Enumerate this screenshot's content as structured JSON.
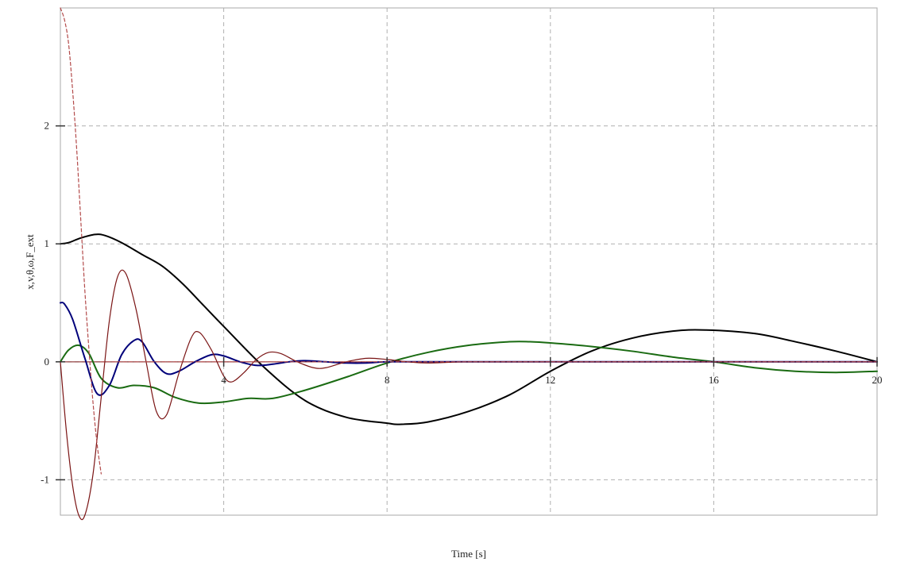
{
  "chart_data": {
    "type": "line",
    "title": "",
    "xlabel": "Time [s]",
    "ylabel": "x,v,θ,ω,F_ext",
    "xlim": [
      0,
      20
    ],
    "ylim": [
      -1.3,
      3.0
    ],
    "xticks": [
      4,
      8,
      12,
      16,
      20
    ],
    "xtick_labels": [
      "4",
      "8",
      "12",
      "16",
      "20"
    ],
    "yticks": [
      -1,
      0,
      1,
      2
    ],
    "ytick_labels": [
      "-1",
      "0",
      "1",
      "2"
    ],
    "grid": true,
    "legend": "none",
    "series": [
      {
        "key": "x",
        "color": "#000000",
        "width": 2,
        "dashed": false,
        "x": [
          0,
          0.2,
          0.5,
          0.85,
          1.1,
          1.5,
          2.0,
          2.5,
          3.0,
          3.5,
          4.0,
          5.0,
          6.0,
          7.0,
          8.0,
          8.3,
          9.0,
          10.0,
          11.0,
          12.0,
          13.0,
          14.0,
          15.0,
          15.8,
          17.0,
          18.0,
          19.0,
          20.0
        ],
        "y": [
          1.0,
          1.01,
          1.05,
          1.08,
          1.07,
          1.01,
          0.91,
          0.81,
          0.66,
          0.48,
          0.3,
          -0.05,
          -0.33,
          -0.47,
          -0.52,
          -0.53,
          -0.51,
          -0.42,
          -0.28,
          -0.08,
          0.09,
          0.2,
          0.26,
          0.27,
          0.24,
          0.17,
          0.09,
          0.0
        ]
      },
      {
        "key": "v",
        "color": "#1a6b12",
        "width": 2,
        "dashed": false,
        "x": [
          0,
          0.2,
          0.45,
          0.7,
          1.0,
          1.4,
          1.8,
          2.3,
          2.8,
          3.4,
          4.0,
          4.6,
          5.2,
          6.0,
          7.0,
          8.0,
          9.0,
          10.0,
          11.0,
          11.5,
          12.0,
          13.0,
          14.0,
          15.0,
          16.0,
          17.0,
          18.0,
          19.0,
          20.0
        ],
        "y": [
          0.0,
          0.1,
          0.14,
          0.07,
          -0.14,
          -0.22,
          -0.2,
          -0.22,
          -0.3,
          -0.35,
          -0.34,
          -0.31,
          -0.31,
          -0.24,
          -0.13,
          -0.01,
          0.08,
          0.14,
          0.17,
          0.17,
          0.16,
          0.13,
          0.09,
          0.04,
          0.0,
          -0.05,
          -0.08,
          -0.09,
          -0.08
        ]
      },
      {
        "key": "θ",
        "color": "#00007a",
        "width": 2,
        "dashed": false,
        "x": [
          0,
          0.1,
          0.3,
          0.6,
          0.9,
          1.2,
          1.5,
          1.8,
          2.0,
          2.3,
          2.6,
          2.9,
          3.3,
          3.7,
          4.0,
          4.4,
          4.8,
          5.2,
          5.6,
          6.0,
          6.5,
          7.0,
          7.5,
          8.0,
          9.0,
          10.0,
          12.0,
          16.0,
          20.0
        ],
        "y": [
          0.5,
          0.49,
          0.36,
          0.03,
          -0.27,
          -0.2,
          0.06,
          0.18,
          0.17,
          0.0,
          -0.1,
          -0.08,
          0.0,
          0.06,
          0.05,
          0.0,
          -0.03,
          -0.02,
          0.0,
          0.01,
          0.0,
          -0.01,
          -0.01,
          0.0,
          0.0,
          0.0,
          0.0,
          0.0,
          0.0
        ]
      },
      {
        "key": "ω",
        "color": "#7a1414",
        "width": 1.2,
        "dashed": false,
        "x": [
          0,
          0.15,
          0.3,
          0.45,
          0.6,
          0.8,
          1.0,
          1.2,
          1.4,
          1.6,
          1.85,
          2.1,
          2.35,
          2.6,
          2.9,
          3.2,
          3.4,
          3.7,
          4.0,
          4.2,
          4.5,
          4.8,
          5.1,
          5.4,
          5.8,
          6.2,
          6.5,
          7.0,
          7.5,
          8.0,
          8.5,
          9.0,
          10.0,
          12.0,
          16.0,
          20.0
        ],
        "y": [
          0.0,
          -0.6,
          -1.05,
          -1.3,
          -1.3,
          -0.95,
          -0.3,
          0.35,
          0.72,
          0.75,
          0.45,
          0.0,
          -0.42,
          -0.45,
          -0.1,
          0.2,
          0.25,
          0.1,
          -0.12,
          -0.17,
          -0.09,
          0.02,
          0.08,
          0.07,
          0.0,
          -0.05,
          -0.05,
          0.0,
          0.03,
          0.02,
          0.0,
          -0.01,
          0.0,
          0.0,
          0.0,
          0.0
        ]
      },
      {
        "key": "F_ext",
        "color": "#b34a4a",
        "width": 1.2,
        "dashed": true,
        "x": [
          0,
          0.1,
          0.2,
          0.3,
          0.4,
          0.5,
          0.6,
          0.7,
          0.8,
          0.9,
          1.0
        ],
        "y": [
          3.0,
          2.9,
          2.7,
          2.3,
          1.8,
          1.2,
          0.6,
          0.1,
          -0.35,
          -0.7,
          -0.95
        ]
      },
      {
        "key": "F_ext_tail",
        "color": "#b34a4a",
        "width": 1.2,
        "dashed": true,
        "x": [
          1.0,
          4.0,
          8.0,
          12.0,
          16.0,
          20.0
        ],
        "y": [
          0.0,
          0.0,
          0.0,
          0.0,
          0.0,
          0.0
        ]
      }
    ]
  }
}
